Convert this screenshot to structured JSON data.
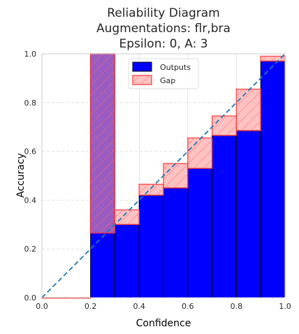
{
  "chart_data": {
    "type": "bar",
    "title": [
      "Reliability Diagram",
      "Augmentations: flr,bra",
      "Epsilon: 0, A: 3"
    ],
    "xlabel": "Confidence",
    "ylabel": "Accuracy",
    "xlim": [
      0.0,
      1.0
    ],
    "ylim": [
      0.0,
      1.0
    ],
    "xticks": [
      "0.0",
      "0.2",
      "0.4",
      "0.6",
      "0.8",
      "1.0"
    ],
    "yticks": [
      "0.0",
      "0.2",
      "0.4",
      "0.6",
      "0.8",
      "1.0"
    ],
    "grid": true,
    "legend_position": "top-center",
    "bins": [
      0.0,
      0.1,
      0.2,
      0.3,
      0.4,
      0.5,
      0.6,
      0.7,
      0.8,
      0.9
    ],
    "bin_width": 0.1,
    "series": [
      {
        "name": "Outputs",
        "color": "#0000ff",
        "values": [
          0.0,
          0.0,
          1.0,
          0.3,
          0.42,
          0.45,
          0.53,
          0.665,
          0.685,
          0.97
        ]
      },
      {
        "name": "Gap",
        "color": "#ff9999",
        "bottom": [
          0.0,
          0.0,
          0.265,
          0.3,
          0.42,
          0.45,
          0.53,
          0.665,
          0.685,
          0.97
        ],
        "top": [
          0.0,
          0.0,
          1.0,
          0.36,
          0.465,
          0.55,
          0.655,
          0.745,
          0.855,
          0.99
        ]
      }
    ],
    "diagonal": {
      "from": [
        0,
        0
      ],
      "to": [
        1,
        1
      ],
      "style": "dashed",
      "color": "#1f77b4"
    }
  }
}
